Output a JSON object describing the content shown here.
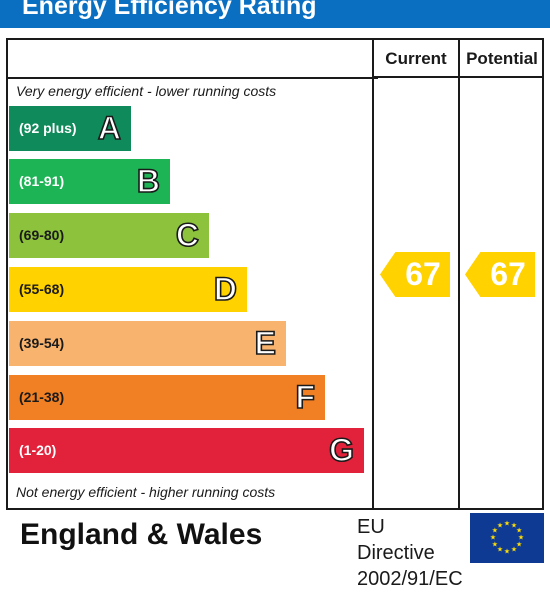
{
  "header": {
    "title": "Energy Efficiency Rating"
  },
  "columns": {
    "current": "Current",
    "potential": "Potential"
  },
  "notes": {
    "top": "Very energy efficient - lower running costs",
    "bottom": "Not energy efficient - higher running costs"
  },
  "bands": [
    {
      "range": "(92 plus)",
      "letter": "A",
      "color": "#0f8a5a",
      "text_color": "#ffffff"
    },
    {
      "range": "(81-91)",
      "letter": "B",
      "color": "#1cb455",
      "text_color": "#ffffff"
    },
    {
      "range": "(69-80)",
      "letter": "C",
      "color": "#8cc23c",
      "text_color": "#1a1a1a"
    },
    {
      "range": "(55-68)",
      "letter": "D",
      "color": "#ffd200",
      "text_color": "#1a1a1a"
    },
    {
      "range": "(39-54)",
      "letter": "E",
      "color": "#f8b36e",
      "text_color": "#1a1a1a"
    },
    {
      "range": "(21-38)",
      "letter": "F",
      "color": "#f08023",
      "text_color": "#1a1a1a"
    },
    {
      "range": "(1-20)",
      "letter": "G",
      "color": "#e2213b",
      "text_color": "#ffffff"
    }
  ],
  "ratings": {
    "current": {
      "value": "67",
      "color": "#ffd200"
    },
    "potential": {
      "value": "67",
      "color": "#ffd200"
    }
  },
  "footer": {
    "region": "England & Wales",
    "directive_line1": "EU Directive",
    "directive_line2": "2002/91/EC",
    "flag_icon": "eu-flag-icon",
    "flag_color": "#0f3a93",
    "star_color": "#ffde00"
  }
}
